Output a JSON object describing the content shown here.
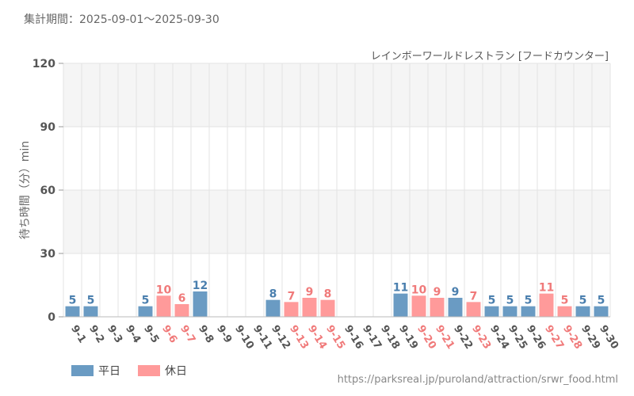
{
  "header": {
    "period_label": "集計期間：2025-09-01～2025-09-30",
    "attraction_title": "レインボーワールドレストラン [フードカウンター]"
  },
  "footer": {
    "source_url": "https://parksreal.jp/puroland/attraction/srwr_food.html"
  },
  "colors": {
    "weekday": "#6a9bc3",
    "holiday": "#ff9a9a",
    "weekday_label": "#4a7fae",
    "holiday_label": "#f07a7a",
    "axis_text": "#555555",
    "band": "#f5f5f5",
    "grid": "#e3e3e3"
  },
  "chart_data": {
    "type": "bar",
    "title": "レインボーワールドレストラン [フードカウンター]",
    "xlabel": "",
    "ylabel": "待ち時間（分）min",
    "ylim": [
      0,
      120
    ],
    "yticks": [
      0,
      30,
      60,
      90,
      120
    ],
    "categories": [
      "9-1",
      "9-2",
      "9-3",
      "9-4",
      "9-5",
      "9-6",
      "9-7",
      "9-8",
      "9-9",
      "9-10",
      "9-11",
      "9-12",
      "9-13",
      "9-14",
      "9-15",
      "9-16",
      "9-17",
      "9-18",
      "9-19",
      "9-20",
      "9-21",
      "9-22",
      "9-23",
      "9-24",
      "9-25",
      "9-26",
      "9-27",
      "9-28",
      "9-29",
      "9-30"
    ],
    "day_type": [
      "weekday",
      "weekday",
      "weekday",
      "weekday",
      "weekday",
      "holiday",
      "holiday",
      "weekday",
      "weekday",
      "weekday",
      "weekday",
      "weekday",
      "holiday",
      "holiday",
      "holiday",
      "weekday",
      "weekday",
      "weekday",
      "weekday",
      "holiday",
      "holiday",
      "weekday",
      "holiday",
      "weekday",
      "weekday",
      "weekday",
      "holiday",
      "holiday",
      "weekday",
      "weekday"
    ],
    "values": [
      5,
      5,
      null,
      null,
      5,
      10,
      6,
      12,
      null,
      null,
      null,
      8,
      7,
      9,
      8,
      null,
      null,
      null,
      11,
      10,
      9,
      9,
      7,
      5,
      5,
      5,
      11,
      5,
      5,
      5
    ],
    "legend": [
      {
        "key": "weekday",
        "label": "平日"
      },
      {
        "key": "holiday",
        "label": "休日"
      }
    ],
    "legend_position": "bottom-left"
  }
}
